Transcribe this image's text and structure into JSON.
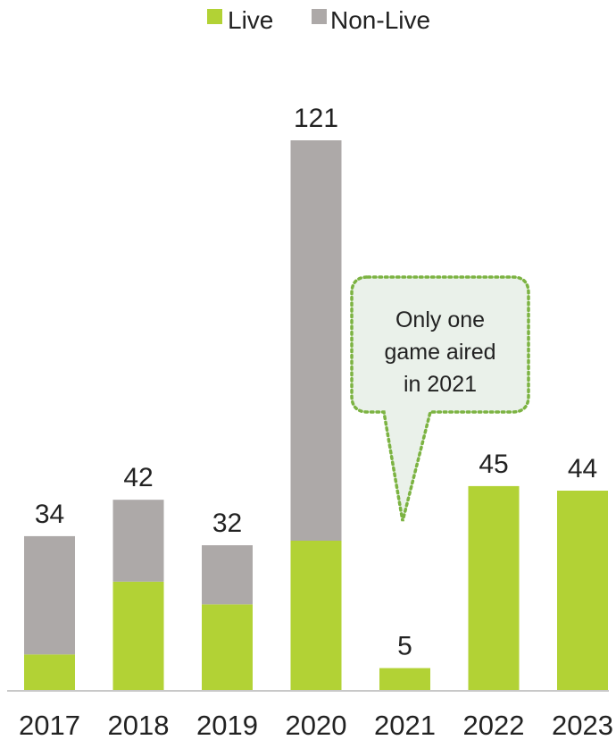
{
  "chart_data": {
    "type": "bar",
    "stacked": true,
    "categories": [
      "2017",
      "2018",
      "2019",
      "2020",
      "2021",
      "2022",
      "2023"
    ],
    "series": [
      {
        "name": "Live",
        "color": "#b2d235",
        "values": [
          8,
          24,
          19,
          33,
          5,
          45,
          44
        ]
      },
      {
        "name": "Non-Live",
        "color": "#ada9a8",
        "values": [
          26,
          18,
          13,
          88,
          0,
          0,
          0
        ]
      }
    ],
    "totals": [
      34,
      42,
      32,
      121,
      5,
      45,
      44
    ],
    "total_labels": [
      "34",
      "42",
      "32",
      "121",
      "5",
      "45",
      "44"
    ],
    "ylim": [
      0,
      121
    ],
    "grid": false,
    "legend_position": "top-center",
    "callout": {
      "lines": [
        "Only one",
        "game aired",
        "in 2021"
      ],
      "points_to": "2021",
      "border_color": "#7cb342",
      "fill_color": "#eaf1ea"
    }
  }
}
